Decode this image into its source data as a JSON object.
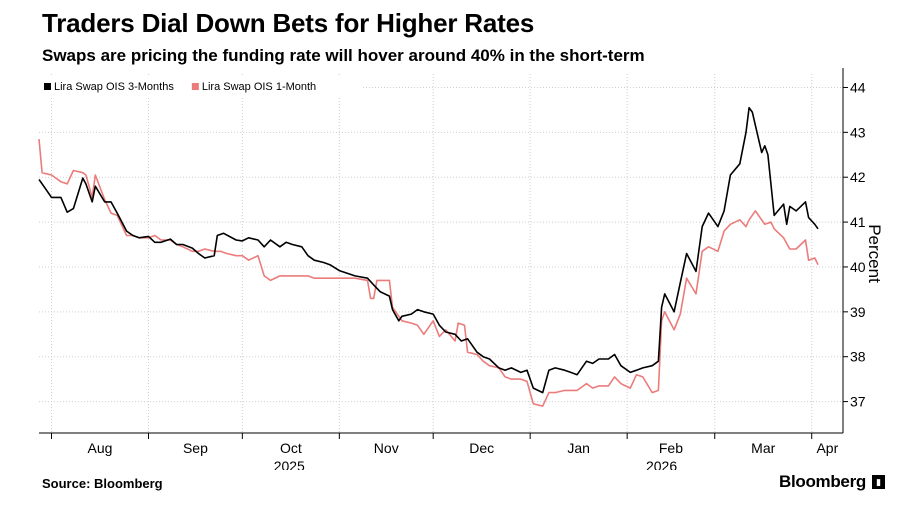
{
  "header": {
    "title": "Traders Dial Down Bets for Higher Rates",
    "subtitle": "Swaps are pricing the funding rate will hover around 40% in the short-term"
  },
  "footer": {
    "source": "Source: Bloomberg",
    "brand": "Bloomberg"
  },
  "chart_data": {
    "type": "line",
    "ylabel": "Percent",
    "ylim": [
      36.3,
      44.3
    ],
    "yticks": [
      37,
      38,
      39,
      40,
      41,
      42,
      43,
      44
    ],
    "y_axis_side": "right",
    "grid": true,
    "legend_placement": "top-left",
    "x_axis": {
      "type": "date",
      "range": [
        "2025-07-28",
        "2026-04-11"
      ],
      "ticks": [
        {
          "date": "2025-08-01",
          "label": "Aug"
        },
        {
          "date": "2025-09-01",
          "label": "Sep"
        },
        {
          "date": "2025-10-01",
          "label": "Oct"
        },
        {
          "date": "2025-11-01",
          "label": "Nov"
        },
        {
          "date": "2025-12-01",
          "label": "Dec"
        },
        {
          "date": "2026-01-01",
          "label": "Jan"
        },
        {
          "date": "2026-02-01",
          "label": "Feb"
        },
        {
          "date": "2026-03-01",
          "label": "Mar"
        },
        {
          "date": "2026-04-01",
          "label": "Apr"
        }
      ],
      "year_labels": [
        {
          "date": "2025-10-16",
          "label": "2025"
        },
        {
          "date": "2026-02-12",
          "label": "2026"
        }
      ]
    },
    "series": [
      {
        "name": "Lira Swap OIS 3-Months",
        "color": "#000000",
        "points": [
          [
            "2025-07-28",
            41.95
          ],
          [
            "2025-07-30",
            41.75
          ],
          [
            "2025-08-01",
            41.55
          ],
          [
            "2025-08-04",
            41.55
          ],
          [
            "2025-08-06",
            41.22
          ],
          [
            "2025-08-08",
            41.3
          ],
          [
            "2025-08-11",
            41.98
          ],
          [
            "2025-08-12",
            41.85
          ],
          [
            "2025-08-14",
            41.45
          ],
          [
            "2025-08-15",
            41.8
          ],
          [
            "2025-08-18",
            41.45
          ],
          [
            "2025-08-20",
            41.45
          ],
          [
            "2025-08-22",
            41.2
          ],
          [
            "2025-08-25",
            40.8
          ],
          [
            "2025-08-27",
            40.7
          ],
          [
            "2025-08-29",
            40.65
          ],
          [
            "2025-09-01",
            40.68
          ],
          [
            "2025-09-03",
            40.55
          ],
          [
            "2025-09-05",
            40.55
          ],
          [
            "2025-09-08",
            40.62
          ],
          [
            "2025-09-10",
            40.5
          ],
          [
            "2025-09-12",
            40.5
          ],
          [
            "2025-09-15",
            40.42
          ],
          [
            "2025-09-17",
            40.3
          ],
          [
            "2025-09-19",
            40.2
          ],
          [
            "2025-09-22",
            40.25
          ],
          [
            "2025-09-23",
            40.7
          ],
          [
            "2025-09-25",
            40.75
          ],
          [
            "2025-09-29",
            40.6
          ],
          [
            "2025-10-01",
            40.58
          ],
          [
            "2025-10-03",
            40.65
          ],
          [
            "2025-10-06",
            40.6
          ],
          [
            "2025-10-08",
            40.45
          ],
          [
            "2025-10-10",
            40.6
          ],
          [
            "2025-10-13",
            40.45
          ],
          [
            "2025-10-15",
            40.55
          ],
          [
            "2025-10-17",
            40.5
          ],
          [
            "2025-10-20",
            40.45
          ],
          [
            "2025-10-22",
            40.25
          ],
          [
            "2025-10-24",
            40.15
          ],
          [
            "2025-10-27",
            40.1
          ],
          [
            "2025-10-29",
            40.05
          ],
          [
            "2025-11-01",
            39.92
          ],
          [
            "2025-11-04",
            39.85
          ],
          [
            "2025-11-06",
            39.8
          ],
          [
            "2025-11-10",
            39.75
          ],
          [
            "2025-11-12",
            39.6
          ],
          [
            "2025-11-14",
            39.45
          ],
          [
            "2025-11-17",
            39.35
          ],
          [
            "2025-11-18",
            39.05
          ],
          [
            "2025-11-20",
            38.8
          ],
          [
            "2025-11-21",
            38.9
          ],
          [
            "2025-11-24",
            38.95
          ],
          [
            "2025-11-26",
            39.05
          ],
          [
            "2025-11-28",
            39.0
          ],
          [
            "2025-12-01",
            38.95
          ],
          [
            "2025-12-03",
            38.7
          ],
          [
            "2025-12-05",
            38.55
          ],
          [
            "2025-12-08",
            38.5
          ],
          [
            "2025-12-10",
            38.35
          ],
          [
            "2025-12-12",
            38.4
          ],
          [
            "2025-12-15",
            38.1
          ],
          [
            "2025-12-17",
            38.0
          ],
          [
            "2025-12-19",
            37.95
          ],
          [
            "2025-12-22",
            37.75
          ],
          [
            "2025-12-24",
            37.7
          ],
          [
            "2025-12-26",
            37.75
          ],
          [
            "2025-12-29",
            37.65
          ],
          [
            "2025-12-31",
            37.7
          ],
          [
            "2026-01-02",
            37.3
          ],
          [
            "2026-01-05",
            37.2
          ],
          [
            "2026-01-07",
            37.7
          ],
          [
            "2026-01-09",
            37.75
          ],
          [
            "2026-01-12",
            37.7
          ],
          [
            "2026-01-14",
            37.65
          ],
          [
            "2026-01-16",
            37.6
          ],
          [
            "2026-01-19",
            37.9
          ],
          [
            "2026-01-21",
            37.85
          ],
          [
            "2026-01-23",
            37.95
          ],
          [
            "2026-01-26",
            37.95
          ],
          [
            "2026-01-28",
            38.05
          ],
          [
            "2026-01-30",
            37.8
          ],
          [
            "2026-02-02",
            37.65
          ],
          [
            "2026-02-04",
            37.7
          ],
          [
            "2026-02-06",
            37.75
          ],
          [
            "2026-02-09",
            37.8
          ],
          [
            "2026-02-11",
            37.9
          ],
          [
            "2026-02-12",
            39.1
          ],
          [
            "2026-02-13",
            39.4
          ],
          [
            "2026-02-16",
            39.0
          ],
          [
            "2026-02-18",
            39.65
          ],
          [
            "2026-02-20",
            40.3
          ],
          [
            "2026-02-23",
            39.9
          ],
          [
            "2026-02-25",
            40.9
          ],
          [
            "2026-02-27",
            41.2
          ],
          [
            "2026-03-02",
            40.9
          ],
          [
            "2026-03-04",
            41.25
          ],
          [
            "2026-03-06",
            42.05
          ],
          [
            "2026-03-09",
            42.3
          ],
          [
            "2026-03-11",
            43.0
          ],
          [
            "2026-03-12",
            43.55
          ],
          [
            "2026-03-13",
            43.45
          ],
          [
            "2026-03-16",
            42.55
          ],
          [
            "2026-03-17",
            42.7
          ],
          [
            "2026-03-18",
            42.5
          ],
          [
            "2026-03-20",
            41.15
          ],
          [
            "2026-03-23",
            41.4
          ],
          [
            "2026-03-24",
            40.95
          ],
          [
            "2026-03-25",
            41.35
          ],
          [
            "2026-03-27",
            41.25
          ],
          [
            "2026-03-30",
            41.45
          ],
          [
            "2026-03-31",
            41.1
          ],
          [
            "2026-04-02",
            40.95
          ],
          [
            "2026-04-03",
            40.85
          ]
        ]
      },
      {
        "name": "Lira Swap OIS 1-Month",
        "color": "#ec7c7c",
        "points": [
          [
            "2025-07-28",
            42.85
          ],
          [
            "2025-07-29",
            42.1
          ],
          [
            "2025-08-01",
            42.05
          ],
          [
            "2025-08-04",
            41.9
          ],
          [
            "2025-08-06",
            41.85
          ],
          [
            "2025-08-08",
            42.15
          ],
          [
            "2025-08-11",
            42.1
          ],
          [
            "2025-08-12",
            42.05
          ],
          [
            "2025-08-14",
            41.55
          ],
          [
            "2025-08-15",
            42.05
          ],
          [
            "2025-08-18",
            41.5
          ],
          [
            "2025-08-20",
            41.2
          ],
          [
            "2025-08-22",
            41.15
          ],
          [
            "2025-08-25",
            40.7
          ],
          [
            "2025-08-27",
            40.7
          ],
          [
            "2025-08-29",
            40.65
          ],
          [
            "2025-09-01",
            40.65
          ],
          [
            "2025-09-03",
            40.7
          ],
          [
            "2025-09-05",
            40.6
          ],
          [
            "2025-09-08",
            40.6
          ],
          [
            "2025-09-10",
            40.5
          ],
          [
            "2025-09-12",
            40.45
          ],
          [
            "2025-09-15",
            40.35
          ],
          [
            "2025-09-17",
            40.35
          ],
          [
            "2025-09-19",
            40.4
          ],
          [
            "2025-09-22",
            40.35
          ],
          [
            "2025-09-24",
            40.35
          ],
          [
            "2025-09-26",
            40.3
          ],
          [
            "2025-09-29",
            40.25
          ],
          [
            "2025-10-01",
            40.25
          ],
          [
            "2025-10-03",
            40.15
          ],
          [
            "2025-10-06",
            40.25
          ],
          [
            "2025-10-08",
            39.8
          ],
          [
            "2025-10-10",
            39.7
          ],
          [
            "2025-10-13",
            39.8
          ],
          [
            "2025-10-15",
            39.8
          ],
          [
            "2025-10-17",
            39.8
          ],
          [
            "2025-10-20",
            39.8
          ],
          [
            "2025-10-22",
            39.8
          ],
          [
            "2025-10-24",
            39.75
          ],
          [
            "2025-10-27",
            39.75
          ],
          [
            "2025-10-29",
            39.75
          ],
          [
            "2025-11-01",
            39.75
          ],
          [
            "2025-11-04",
            39.75
          ],
          [
            "2025-11-06",
            39.75
          ],
          [
            "2025-11-10",
            39.7
          ],
          [
            "2025-11-11",
            39.3
          ],
          [
            "2025-11-12",
            39.3
          ],
          [
            "2025-11-13",
            39.7
          ],
          [
            "2025-11-17",
            39.7
          ],
          [
            "2025-11-18",
            39.1
          ],
          [
            "2025-11-20",
            38.9
          ],
          [
            "2025-11-21",
            38.8
          ],
          [
            "2025-11-24",
            38.75
          ],
          [
            "2025-11-26",
            38.7
          ],
          [
            "2025-11-28",
            38.5
          ],
          [
            "2025-12-01",
            38.8
          ],
          [
            "2025-12-03",
            38.45
          ],
          [
            "2025-12-05",
            38.6
          ],
          [
            "2025-12-08",
            38.35
          ],
          [
            "2025-12-09",
            38.75
          ],
          [
            "2025-12-11",
            38.7
          ],
          [
            "2025-12-12",
            38.1
          ],
          [
            "2025-12-15",
            38.05
          ],
          [
            "2025-12-17",
            37.9
          ],
          [
            "2025-12-19",
            37.8
          ],
          [
            "2025-12-22",
            37.75
          ],
          [
            "2025-12-24",
            37.55
          ],
          [
            "2025-12-26",
            37.5
          ],
          [
            "2025-12-29",
            37.5
          ],
          [
            "2025-12-31",
            37.45
          ],
          [
            "2026-01-02",
            36.95
          ],
          [
            "2026-01-05",
            36.9
          ],
          [
            "2026-01-07",
            37.2
          ],
          [
            "2026-01-09",
            37.2
          ],
          [
            "2026-01-12",
            37.25
          ],
          [
            "2026-01-14",
            37.25
          ],
          [
            "2026-01-16",
            37.25
          ],
          [
            "2026-01-19",
            37.4
          ],
          [
            "2026-01-21",
            37.3
          ],
          [
            "2026-01-23",
            37.35
          ],
          [
            "2026-01-26",
            37.35
          ],
          [
            "2026-01-28",
            37.55
          ],
          [
            "2026-01-30",
            37.4
          ],
          [
            "2026-02-02",
            37.3
          ],
          [
            "2026-02-04",
            37.6
          ],
          [
            "2026-02-06",
            37.55
          ],
          [
            "2026-02-09",
            37.2
          ],
          [
            "2026-02-11",
            37.25
          ],
          [
            "2026-02-12",
            38.8
          ],
          [
            "2026-02-13",
            39.0
          ],
          [
            "2026-02-16",
            38.6
          ],
          [
            "2026-02-18",
            38.95
          ],
          [
            "2026-02-20",
            39.75
          ],
          [
            "2026-02-23",
            39.4
          ],
          [
            "2026-02-25",
            40.35
          ],
          [
            "2026-02-27",
            40.45
          ],
          [
            "2026-03-02",
            40.35
          ],
          [
            "2026-03-04",
            40.8
          ],
          [
            "2026-03-06",
            40.95
          ],
          [
            "2026-03-09",
            41.05
          ],
          [
            "2026-03-11",
            40.9
          ],
          [
            "2026-03-12",
            41.05
          ],
          [
            "2026-03-14",
            41.25
          ],
          [
            "2026-03-17",
            40.95
          ],
          [
            "2026-03-19",
            41.0
          ],
          [
            "2026-03-20",
            40.85
          ],
          [
            "2026-03-23",
            40.65
          ],
          [
            "2026-03-25",
            40.4
          ],
          [
            "2026-03-27",
            40.4
          ],
          [
            "2026-03-30",
            40.6
          ],
          [
            "2026-03-31",
            40.15
          ],
          [
            "2026-04-02",
            40.2
          ],
          [
            "2026-04-03",
            40.05
          ]
        ]
      }
    ]
  }
}
